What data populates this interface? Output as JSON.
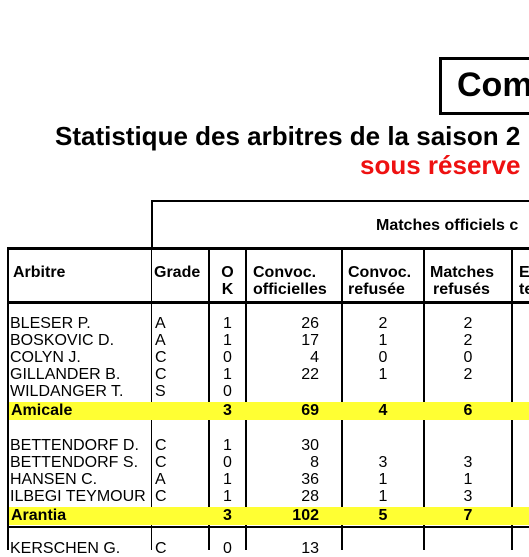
{
  "title": "Com",
  "subtitle": "Statistique des arbitres de la saison 2",
  "reserve": "sous réserve",
  "group_header": "Matches officiels c",
  "columns": {
    "arbitre": "Arbitre",
    "grade": "Grade",
    "ok": [
      "O",
      "K"
    ],
    "convoc": [
      "Convoc.",
      "officielles"
    ],
    "convoc_ref": [
      "Convoc.",
      "refusée"
    ],
    "matches_ref": [
      "Matches",
      "refusés"
    ],
    "last": [
      "E",
      "te"
    ]
  },
  "groups": [
    {
      "rows": [
        {
          "name": "BLESER P.",
          "grade": "A",
          "ok": "1",
          "convoc": "26",
          "refusee": "2",
          "refuses": "2"
        },
        {
          "name": "BOSKOVIC D.",
          "grade": "A",
          "ok": "1",
          "convoc": "17",
          "refusee": "1",
          "refuses": "2"
        },
        {
          "name": "COLYN J.",
          "grade": "C",
          "ok": "0",
          "convoc": "4",
          "refusee": "0",
          "refuses": "0"
        },
        {
          "name": "GILLANDER B.",
          "grade": "C",
          "ok": "1",
          "convoc": "22",
          "refusee": "1",
          "refuses": "2"
        },
        {
          "name": "WILDANGER T.",
          "grade": "S",
          "ok": "0",
          "convoc": "",
          "refusee": "",
          "refuses": ""
        }
      ],
      "total": {
        "name": "Amicale",
        "ok": "3",
        "convoc": "69",
        "refusee": "4",
        "refuses": "6"
      }
    },
    {
      "rows": [
        {
          "name": "BETTENDORF D.",
          "grade": "C",
          "ok": "1",
          "convoc": "30",
          "refusee": "",
          "refuses": ""
        },
        {
          "name": "BETTENDORF S.",
          "grade": "C",
          "ok": "0",
          "convoc": "8",
          "refusee": "3",
          "refuses": "3"
        },
        {
          "name": "HANSEN C.",
          "grade": "A",
          "ok": "1",
          "convoc": "36",
          "refusee": "1",
          "refuses": "1"
        },
        {
          "name": "ILBEGI TEYMOUR",
          "grade": "C",
          "ok": "1",
          "convoc": "28",
          "refusee": "1",
          "refuses": "3"
        }
      ],
      "total": {
        "name": "Arantia",
        "ok": "3",
        "convoc": "102",
        "refusee": "5",
        "refuses": "7"
      }
    },
    {
      "rows": [
        {
          "name": "KERSCHEN G.",
          "grade": "C",
          "ok": "0",
          "convoc": "13",
          "refusee": "",
          "refuses": ""
        }
      ]
    }
  ]
}
